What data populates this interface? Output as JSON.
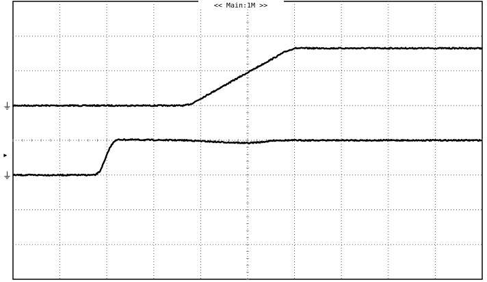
{
  "chart_data": {
    "type": "line",
    "title": "<< Main:1M >>",
    "xlabel": "",
    "ylabel": "",
    "grid": true,
    "grid_style": "dotted",
    "xlim": [
      0,
      10
    ],
    "ylim": [
      -4,
      4
    ],
    "x_divisions": 10,
    "y_divisions": 8,
    "series": [
      {
        "points": [
          [
            0,
            1.0
          ],
          [
            3.65,
            1.0
          ],
          [
            3.8,
            1.05
          ],
          [
            4.2,
            1.35
          ],
          [
            5.0,
            1.95
          ],
          [
            5.8,
            2.55
          ],
          [
            6.0,
            2.65
          ],
          [
            10,
            2.65
          ]
        ]
      },
      {
        "points": [
          [
            0,
            -1.0
          ],
          [
            1.75,
            -1.0
          ],
          [
            1.85,
            -0.9
          ],
          [
            1.95,
            -0.6
          ],
          [
            2.05,
            -0.25
          ],
          [
            2.15,
            -0.03
          ],
          [
            2.25,
            0.02
          ],
          [
            3.7,
            0.0
          ],
          [
            4.4,
            -0.05
          ],
          [
            5.0,
            -0.08
          ],
          [
            5.3,
            -0.05
          ],
          [
            5.6,
            0.0
          ],
          [
            10,
            0.0
          ]
        ]
      }
    ],
    "markers": [
      {
        "symbol": "⏚",
        "y": 1.0
      },
      {
        "symbol": "▸",
        "y": -0.4
      },
      {
        "symbol": "⏚",
        "y": -1.0
      }
    ]
  }
}
